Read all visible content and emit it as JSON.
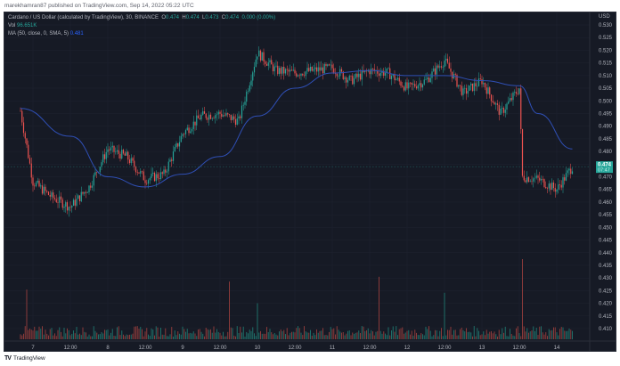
{
  "publisher_line": "marekhamran87 published on TradingView.com, Sep 14, 2022 05:22 UTC",
  "legend": {
    "symbol": "Cardano / US Dollar (calculated by TradingView), 30, BINANCE",
    "o_label": "O",
    "o": "0.474",
    "h_label": "H",
    "h": "0.474",
    "l_label": "L",
    "l": "0.473",
    "c_label": "C",
    "c": "0.474",
    "change": "0.000 (0.00%)",
    "vol_label": "Vol",
    "vol": "96.651K",
    "ma_label": "MA (50, close, 0, SMA, 5)",
    "ma_value": "0.481"
  },
  "price_axis": {
    "currency": "USD",
    "ticks": [
      "0.530",
      "0.525",
      "0.520",
      "0.515",
      "0.510",
      "0.505",
      "0.500",
      "0.495",
      "0.490",
      "0.485",
      "0.480",
      "0.475",
      "0.470",
      "0.465",
      "0.460",
      "0.455",
      "0.450",
      "0.445",
      "0.440",
      "0.435",
      "0.430",
      "0.425",
      "0.420",
      "0.415",
      "0.410"
    ],
    "last_price": "0.474",
    "countdown": "07:47"
  },
  "time_axis": [
    "7",
    "12:00",
    "8",
    "12:00",
    "9",
    "12:00",
    "10",
    "12:00",
    "11",
    "12:00",
    "12",
    "12:00",
    "13",
    "12:00",
    "14"
  ],
  "footer": {
    "logo": "TV",
    "brand": "TradingView"
  },
  "colors": {
    "up": "#26a69a",
    "down": "#ef5350",
    "ma": "#2f4fb5",
    "background": "#161a25",
    "grid": "#1f2330"
  },
  "chart_data": {
    "type": "candlestick",
    "title": "Cardano / US Dollar (calculated by TradingView), 30, BINANCE",
    "xlabel": "",
    "ylabel": "USD",
    "ylim": [
      0.408,
      0.533
    ],
    "interval": "30m",
    "x_ticks": [
      "7",
      "12:00",
      "8",
      "12:00",
      "9",
      "12:00",
      "10",
      "12:00",
      "11",
      "12:00",
      "12",
      "12:00",
      "13",
      "12:00",
      "14"
    ],
    "price_path": [
      {
        "x": "Sep 6 20:00",
        "close": 0.496
      },
      {
        "x": "Sep 7 00:00",
        "close": 0.468
      },
      {
        "x": "Sep 7 06:00",
        "close": 0.462
      },
      {
        "x": "Sep 7 12:00",
        "close": 0.458
      },
      {
        "x": "Sep 7 18:00",
        "close": 0.466
      },
      {
        "x": "Sep 8 00:00",
        "close": 0.481
      },
      {
        "x": "Sep 8 06:00",
        "close": 0.478
      },
      {
        "x": "Sep 8 12:00",
        "close": 0.469
      },
      {
        "x": "Sep 8 18:00",
        "close": 0.471
      },
      {
        "x": "Sep 9 00:00",
        "close": 0.487
      },
      {
        "x": "Sep 9 06:00",
        "close": 0.494
      },
      {
        "x": "Sep 9 12:00",
        "close": 0.495
      },
      {
        "x": "Sep 9 18:00",
        "close": 0.492
      },
      {
        "x": "Sep 10 00:00",
        "close": 0.519
      },
      {
        "x": "Sep 10 06:00",
        "close": 0.512
      },
      {
        "x": "Sep 10 12:00",
        "close": 0.511
      },
      {
        "x": "Sep 10 18:00",
        "close": 0.512
      },
      {
        "x": "Sep 11 00:00",
        "close": 0.513
      },
      {
        "x": "Sep 11 06:00",
        "close": 0.508
      },
      {
        "x": "Sep 11 12:00",
        "close": 0.512
      },
      {
        "x": "Sep 11 18:00",
        "close": 0.511
      },
      {
        "x": "Sep 12 00:00",
        "close": 0.505
      },
      {
        "x": "Sep 12 06:00",
        "close": 0.508
      },
      {
        "x": "Sep 12 12:00",
        "close": 0.516
      },
      {
        "x": "Sep 12 18:00",
        "close": 0.503
      },
      {
        "x": "Sep 13 00:00",
        "close": 0.508
      },
      {
        "x": "Sep 13 06:00",
        "close": 0.495
      },
      {
        "x": "Sep 13 12:00",
        "close": 0.505
      },
      {
        "x": "Sep 13 13:00",
        "close": 0.47
      },
      {
        "x": "Sep 13 18:00",
        "close": 0.469
      },
      {
        "x": "Sep 14 00:00",
        "close": 0.465
      },
      {
        "x": "Sep 14 05:00",
        "close": 0.474
      }
    ],
    "ma50_path": [
      {
        "x": "Sep 6 20:00",
        "value": 0.497
      },
      {
        "x": "Sep 7 12:00",
        "value": 0.486
      },
      {
        "x": "Sep 8 00:00",
        "value": 0.47
      },
      {
        "x": "Sep 8 12:00",
        "value": 0.466
      },
      {
        "x": "Sep 9 00:00",
        "value": 0.471
      },
      {
        "x": "Sep 9 12:00",
        "value": 0.478
      },
      {
        "x": "Sep 10 00:00",
        "value": 0.494
      },
      {
        "x": "Sep 10 12:00",
        "value": 0.505
      },
      {
        "x": "Sep 11 00:00",
        "value": 0.511
      },
      {
        "x": "Sep 11 12:00",
        "value": 0.512
      },
      {
        "x": "Sep 12 00:00",
        "value": 0.51
      },
      {
        "x": "Sep 12 12:00",
        "value": 0.51
      },
      {
        "x": "Sep 13 00:00",
        "value": 0.508
      },
      {
        "x": "Sep 13 12:00",
        "value": 0.506
      },
      {
        "x": "Sep 13 18:00",
        "value": 0.495
      },
      {
        "x": "Sep 14 05:00",
        "value": 0.481
      }
    ],
    "volume_spikes": [
      {
        "x": "Sep 6 22:00",
        "direction": "down",
        "relative": 0.62
      },
      {
        "x": "Sep 9 15:00",
        "direction": "down",
        "relative": 0.72
      },
      {
        "x": "Sep 10 00:00",
        "direction": "up",
        "relative": 0.45
      },
      {
        "x": "Sep 11 15:00",
        "direction": "down",
        "relative": 0.78
      },
      {
        "x": "Sep 12 12:00",
        "direction": "up",
        "relative": 0.58
      },
      {
        "x": "Sep 13 13:00",
        "direction": "down",
        "relative": 1.0
      }
    ],
    "last": {
      "price": 0.474,
      "countdown": "07:47"
    },
    "grid": true
  }
}
